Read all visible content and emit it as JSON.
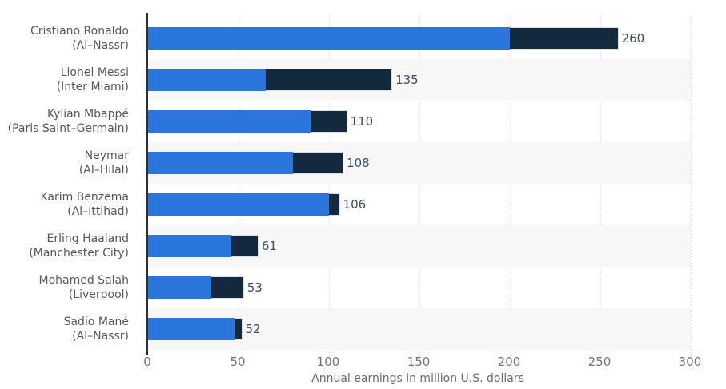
{
  "chart_data": {
    "type": "bar",
    "orientation": "horizontal",
    "stacked": true,
    "title": "",
    "xlabel": "Annual earnings in million U.S. dollars",
    "ylabel": "",
    "xlim": [
      0,
      300
    ],
    "xticks": [
      0,
      50,
      100,
      150,
      200,
      250,
      300
    ],
    "grid": "vertical-dotted",
    "legend": "none",
    "row_stripes": "alternating light gray on even rows (2nd, 4th, 6th, 8th)",
    "categories": [
      {
        "name": "Cristiano Ronaldo",
        "club": "(Al–Nassr)"
      },
      {
        "name": "Lionel Messi",
        "club": "(Inter Miami)"
      },
      {
        "name": "Kylian Mbappé",
        "club": "(Paris Saint–Germain)"
      },
      {
        "name": "Neymar",
        "club": "(Al–Hilal)"
      },
      {
        "name": "Karim Benzema",
        "club": "(Al–Ittihad)"
      },
      {
        "name": "Erling Haaland",
        "club": "(Manchester City)"
      },
      {
        "name": "Mohamed Salah",
        "club": "(Liverpool)"
      },
      {
        "name": "Sadio Mané",
        "club": "(Al–Nassr)"
      }
    ],
    "series": [
      {
        "name": "segment-light-blue",
        "color": "#2b76dc",
        "values": [
          200,
          65,
          90,
          80,
          100,
          46,
          35,
          48
        ]
      },
      {
        "name": "segment-dark-navy",
        "color": "#13293d",
        "values": [
          60,
          70,
          20,
          28,
          6,
          15,
          18,
          4
        ]
      }
    ],
    "totals": [
      260,
      135,
      110,
      108,
      106,
      61,
      53,
      52
    ]
  },
  "colors": {
    "bar_blue": "#2b76dc",
    "bar_navy": "#13293d",
    "row_stripe": "#f7f7f8",
    "gridline": "#cdcdcd",
    "axis_line": "#2f2f2f",
    "category_text": "#55585c",
    "tick_text": "#737373",
    "value_text": "#3d4d5f",
    "background": "#ffffff"
  }
}
